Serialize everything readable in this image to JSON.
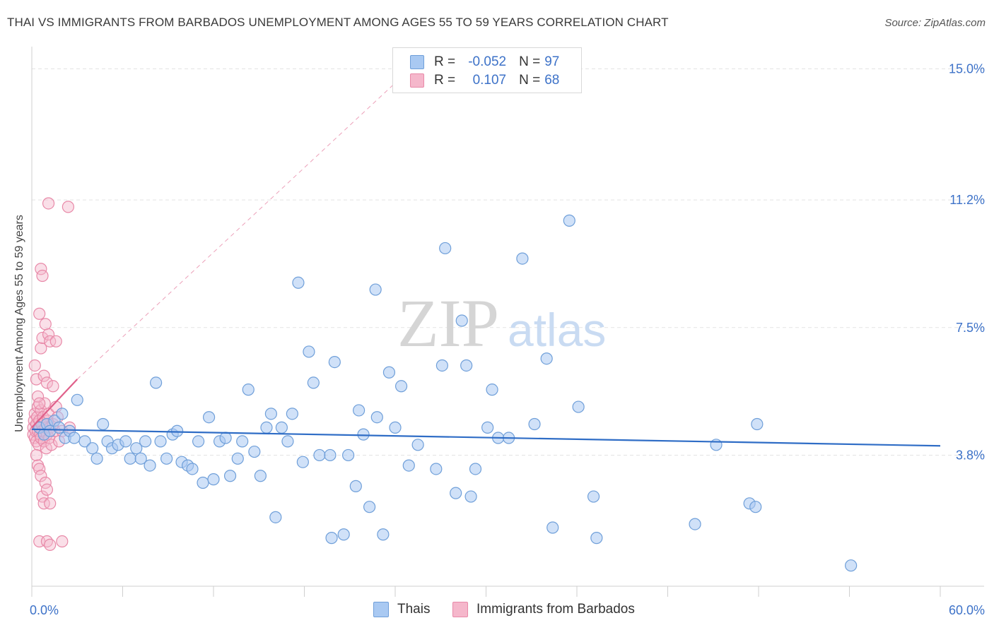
{
  "title": "THAI VS IMMIGRANTS FROM BARBADOS UNEMPLOYMENT AMONG AGES 55 TO 59 YEARS CORRELATION CHART",
  "source": "Source: ZipAtlas.com",
  "watermark": {
    "zip": "ZIP",
    "atlas": "atlas"
  },
  "legend": {
    "r_label": "R =",
    "n_label": "N =",
    "rows": [
      {
        "r": "-0.052",
        "n": "97",
        "color": "#a9c9f2"
      },
      {
        "r": "0.107",
        "n": "68",
        "color": "#f5b7cb"
      }
    ]
  },
  "bottom_legend": [
    "Thais",
    "Immigrants from Barbados"
  ],
  "colors": {
    "blue_fill": "#a9c9f2",
    "blue_stroke": "#6f9fd9",
    "blue_line": "#2f6dc6",
    "pink_fill": "#f5b7cb",
    "pink_stroke": "#e889a8",
    "pink_line": "#e0608a",
    "tick_text": "#3d72c8",
    "grid": "#e3e3e3"
  },
  "chart_data": {
    "type": "scatter",
    "title": "THAI VS IMMIGRANTS FROM BARBADOS UNEMPLOYMENT AMONG AGES 55 TO 59 YEARS CORRELATION CHART",
    "xlabel": "",
    "ylabel": "Unemployment Among Ages 55 to 59 years",
    "xlim": [
      0,
      60
    ],
    "ylim": [
      0,
      15.4
    ],
    "x_tick_labels": [
      "0.0%",
      "60.0%"
    ],
    "y_ticks": [
      3.8,
      7.5,
      11.2,
      15.0
    ],
    "y_tick_labels": [
      "3.8%",
      "7.5%",
      "11.2%",
      "15.0%"
    ],
    "grid": true,
    "series": [
      {
        "name": "Thais",
        "r": -0.052,
        "n": 97,
        "trend": {
          "x": [
            0,
            60
          ],
          "y": [
            4.55,
            4.07
          ]
        },
        "points": [
          [
            0.5,
            4.6
          ],
          [
            0.8,
            4.4
          ],
          [
            1.0,
            4.7
          ],
          [
            1.2,
            4.5
          ],
          [
            1.5,
            4.8
          ],
          [
            1.8,
            4.6
          ],
          [
            2.0,
            5.0
          ],
          [
            2.2,
            4.3
          ],
          [
            2.5,
            4.5
          ],
          [
            2.8,
            4.3
          ],
          [
            3.0,
            5.4
          ],
          [
            3.5,
            4.2
          ],
          [
            4.0,
            4.0
          ],
          [
            4.3,
            3.7
          ],
          [
            4.7,
            4.7
          ],
          [
            5.0,
            4.2
          ],
          [
            5.3,
            4.0
          ],
          [
            5.7,
            4.1
          ],
          [
            6.2,
            4.2
          ],
          [
            6.5,
            3.7
          ],
          [
            6.9,
            4.0
          ],
          [
            7.2,
            3.7
          ],
          [
            7.5,
            4.2
          ],
          [
            7.8,
            3.5
          ],
          [
            8.2,
            5.9
          ],
          [
            8.5,
            4.2
          ],
          [
            8.9,
            3.7
          ],
          [
            9.3,
            4.4
          ],
          [
            9.6,
            4.5
          ],
          [
            9.9,
            3.6
          ],
          [
            10.3,
            3.5
          ],
          [
            10.6,
            3.4
          ],
          [
            11.0,
            4.2
          ],
          [
            11.3,
            3.0
          ],
          [
            11.7,
            4.9
          ],
          [
            12.0,
            3.1
          ],
          [
            12.4,
            4.2
          ],
          [
            12.8,
            4.3
          ],
          [
            13.1,
            3.2
          ],
          [
            13.6,
            3.7
          ],
          [
            13.9,
            4.2
          ],
          [
            14.3,
            5.7
          ],
          [
            14.7,
            3.9
          ],
          [
            15.1,
            3.2
          ],
          [
            15.5,
            4.6
          ],
          [
            15.8,
            5.0
          ],
          [
            16.1,
            2.0
          ],
          [
            16.5,
            4.6
          ],
          [
            16.9,
            4.2
          ],
          [
            17.2,
            5.0
          ],
          [
            17.6,
            8.8
          ],
          [
            17.9,
            3.6
          ],
          [
            18.3,
            6.8
          ],
          [
            18.6,
            5.9
          ],
          [
            19.0,
            3.8
          ],
          [
            19.7,
            3.8
          ],
          [
            19.8,
            1.4
          ],
          [
            20.0,
            6.5
          ],
          [
            20.6,
            1.5
          ],
          [
            20.9,
            3.8
          ],
          [
            21.4,
            2.9
          ],
          [
            21.6,
            5.1
          ],
          [
            21.9,
            4.4
          ],
          [
            22.3,
            2.3
          ],
          [
            22.7,
            8.6
          ],
          [
            22.8,
            4.9
          ],
          [
            23.2,
            1.5
          ],
          [
            23.6,
            6.2
          ],
          [
            24.0,
            4.6
          ],
          [
            24.4,
            5.8
          ],
          [
            24.9,
            3.5
          ],
          [
            25.5,
            4.1
          ],
          [
            26.7,
            3.4
          ],
          [
            27.1,
            6.4
          ],
          [
            27.3,
            9.8
          ],
          [
            28.0,
            2.7
          ],
          [
            28.4,
            7.7
          ],
          [
            28.7,
            6.4
          ],
          [
            29.0,
            2.6
          ],
          [
            29.3,
            3.4
          ],
          [
            30.1,
            4.6
          ],
          [
            30.4,
            5.7
          ],
          [
            30.8,
            4.3
          ],
          [
            31.5,
            4.3
          ],
          [
            32.4,
            9.5
          ],
          [
            33.2,
            4.7
          ],
          [
            34.0,
            6.6
          ],
          [
            34.4,
            1.7
          ],
          [
            35.5,
            10.6
          ],
          [
            36.1,
            5.2
          ],
          [
            37.1,
            2.6
          ],
          [
            37.3,
            1.4
          ],
          [
            43.8,
            1.8
          ],
          [
            45.2,
            4.1
          ],
          [
            47.4,
            2.4
          ],
          [
            47.8,
            2.3
          ],
          [
            47.9,
            4.7
          ],
          [
            54.1,
            0.6
          ]
        ]
      },
      {
        "name": "Immigrants from Barbados",
        "r": 0.107,
        "n": 68,
        "trend": {
          "x": [
            0,
            3.0
          ],
          "y": [
            4.6,
            6.0
          ]
        },
        "trend_extrapolated": {
          "x": [
            3.0,
            25.0
          ],
          "y": [
            6.0,
            15.0
          ]
        },
        "points": [
          [
            0.1,
            4.6
          ],
          [
            0.1,
            4.4
          ],
          [
            0.15,
            4.8
          ],
          [
            0.2,
            5.0
          ],
          [
            0.2,
            4.3
          ],
          [
            0.25,
            4.5
          ],
          [
            0.3,
            4.7
          ],
          [
            0.3,
            4.2
          ],
          [
            0.35,
            4.9
          ],
          [
            0.4,
            4.5
          ],
          [
            0.4,
            5.2
          ],
          [
            0.45,
            4.1
          ],
          [
            0.5,
            4.6
          ],
          [
            0.5,
            4.8
          ],
          [
            0.55,
            4.4
          ],
          [
            0.6,
            5.1
          ],
          [
            0.6,
            4.3
          ],
          [
            0.65,
            4.7
          ],
          [
            0.7,
            4.5
          ],
          [
            0.75,
            4.9
          ],
          [
            0.8,
            4.2
          ],
          [
            0.85,
            5.3
          ],
          [
            0.9,
            4.6
          ],
          [
            0.95,
            4.0
          ],
          [
            1.0,
            4.4
          ],
          [
            1.05,
            4.8
          ],
          [
            1.1,
            5.0
          ],
          [
            1.15,
            4.3
          ],
          [
            1.2,
            4.6
          ],
          [
            1.3,
            4.1
          ],
          [
            1.4,
            4.7
          ],
          [
            1.5,
            4.5
          ],
          [
            1.6,
            5.2
          ],
          [
            1.7,
            4.9
          ],
          [
            1.8,
            4.2
          ],
          [
            2.0,
            4.5
          ],
          [
            0.2,
            6.4
          ],
          [
            0.3,
            6.0
          ],
          [
            0.4,
            5.5
          ],
          [
            0.5,
            5.3
          ],
          [
            0.6,
            6.9
          ],
          [
            0.7,
            7.2
          ],
          [
            0.8,
            6.1
          ],
          [
            0.9,
            7.6
          ],
          [
            1.0,
            5.9
          ],
          [
            1.1,
            7.3
          ],
          [
            1.2,
            7.1
          ],
          [
            1.4,
            5.8
          ],
          [
            1.6,
            7.1
          ],
          [
            0.5,
            7.9
          ],
          [
            0.6,
            9.2
          ],
          [
            0.7,
            9.0
          ],
          [
            1.1,
            11.1
          ],
          [
            2.4,
            11.0
          ],
          [
            0.3,
            3.8
          ],
          [
            0.4,
            3.5
          ],
          [
            0.5,
            3.4
          ],
          [
            0.6,
            3.2
          ],
          [
            0.7,
            2.6
          ],
          [
            0.8,
            2.4
          ],
          [
            0.9,
            3.0
          ],
          [
            1.0,
            2.8
          ],
          [
            1.2,
            2.4
          ],
          [
            0.5,
            1.3
          ],
          [
            1.0,
            1.3
          ],
          [
            1.2,
            1.2
          ],
          [
            2.0,
            1.3
          ],
          [
            2.5,
            4.6
          ]
        ]
      }
    ]
  }
}
